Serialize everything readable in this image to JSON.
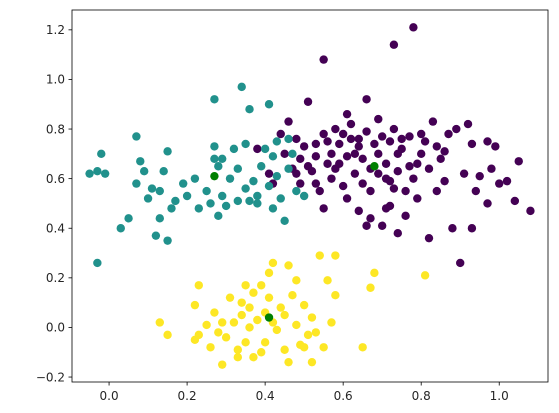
{
  "chart_data": {
    "type": "scatter",
    "title": "",
    "xlabel": "",
    "ylabel": "",
    "xlim": [
      -0.095,
      1.125
    ],
    "ylim": [
      -0.22,
      1.28
    ],
    "xticks": [
      0.0,
      0.2,
      0.4,
      0.6,
      0.8,
      1.0
    ],
    "xtick_labels": [
      "0.0",
      "0.2",
      "0.4",
      "0.6",
      "0.8",
      "1.0"
    ],
    "yticks": [
      -0.2,
      0.0,
      0.2,
      0.4,
      0.6,
      0.8,
      1.0,
      1.2
    ],
    "ytick_labels": [
      "−0.2",
      "0.0",
      "0.2",
      "0.4",
      "0.6",
      "0.8",
      "1.0",
      "1.2"
    ],
    "grid": false,
    "legend": "none",
    "series": [
      {
        "color": "#440154",
        "points": [
          [
            0.38,
            0.72
          ],
          [
            0.41,
            0.62
          ],
          [
            0.42,
            0.58
          ],
          [
            0.44,
            0.78
          ],
          [
            0.46,
            0.83
          ],
          [
            0.47,
            0.64
          ],
          [
            0.48,
            0.62
          ],
          [
            0.49,
            0.58
          ],
          [
            0.49,
            0.68
          ],
          [
            0.5,
            0.73
          ],
          [
            0.51,
            0.65
          ],
          [
            0.51,
            0.91
          ],
          [
            0.52,
            0.63
          ],
          [
            0.53,
            0.74
          ],
          [
            0.53,
            0.58
          ],
          [
            0.54,
            0.55
          ],
          [
            0.55,
            0.78
          ],
          [
            0.55,
            0.48
          ],
          [
            0.55,
            1.08
          ],
          [
            0.56,
            0.66
          ],
          [
            0.57,
            0.6
          ],
          [
            0.57,
            0.7
          ],
          [
            0.58,
            0.64
          ],
          [
            0.58,
            0.8
          ],
          [
            0.59,
            0.74
          ],
          [
            0.6,
            0.78
          ],
          [
            0.6,
            0.57
          ],
          [
            0.61,
            0.69
          ],
          [
            0.61,
            0.52
          ],
          [
            0.62,
            0.76
          ],
          [
            0.62,
            0.82
          ],
          [
            0.63,
            0.62
          ],
          [
            0.63,
            0.7
          ],
          [
            0.64,
            0.73
          ],
          [
            0.64,
            0.47
          ],
          [
            0.65,
            0.58
          ],
          [
            0.65,
            0.68
          ],
          [
            0.66,
            0.79
          ],
          [
            0.66,
            0.92
          ],
          [
            0.67,
            0.44
          ],
          [
            0.67,
            0.55
          ],
          [
            0.68,
            0.74
          ],
          [
            0.69,
            0.62
          ],
          [
            0.69,
            0.7
          ],
          [
            0.7,
            0.41
          ],
          [
            0.7,
            0.77
          ],
          [
            0.71,
            0.6
          ],
          [
            0.71,
            0.66
          ],
          [
            0.72,
            0.75
          ],
          [
            0.72,
            0.49
          ],
          [
            0.73,
            0.8
          ],
          [
            0.73,
            0.56
          ],
          [
            0.74,
            0.63
          ],
          [
            0.74,
            0.38
          ],
          [
            0.75,
            0.76
          ],
          [
            0.75,
            0.72
          ],
          [
            0.76,
            0.45
          ],
          [
            0.76,
            0.55
          ],
          [
            0.77,
            0.65
          ],
          [
            0.77,
            0.77
          ],
          [
            0.78,
            0.6
          ],
          [
            0.78,
            1.21
          ],
          [
            0.79,
            0.52
          ],
          [
            0.8,
            0.7
          ],
          [
            0.8,
            0.78
          ],
          [
            0.81,
            0.75
          ],
          [
            0.82,
            0.64
          ],
          [
            0.82,
            0.36
          ],
          [
            0.83,
            0.83
          ],
          [
            0.84,
            0.55
          ],
          [
            0.85,
            0.68
          ],
          [
            0.86,
            0.59
          ],
          [
            0.87,
            0.78
          ],
          [
            0.88,
            0.4
          ],
          [
            0.89,
            0.8
          ],
          [
            0.9,
            0.26
          ],
          [
            0.91,
            0.62
          ],
          [
            0.92,
            0.82
          ],
          [
            0.93,
            0.74
          ],
          [
            0.94,
            0.55
          ],
          [
            0.95,
            0.61
          ],
          [
            0.97,
            0.5
          ],
          [
            0.98,
            0.64
          ],
          [
            0.99,
            0.73
          ],
          [
            1.0,
            0.58
          ],
          [
            1.02,
            0.59
          ],
          [
            1.04,
            0.51
          ],
          [
            1.05,
            0.67
          ],
          [
            1.08,
            0.47
          ],
          [
            0.73,
            1.14
          ],
          [
            0.66,
            0.41
          ],
          [
            0.71,
            0.48
          ],
          [
            0.53,
            0.69
          ],
          [
            0.59,
            0.66
          ],
          [
            0.64,
            0.76
          ],
          [
            0.69,
            0.84
          ],
          [
            0.79,
            0.66
          ],
          [
            0.84,
            0.73
          ],
          [
            0.97,
            0.75
          ],
          [
            0.61,
            0.86
          ],
          [
            0.74,
            0.7
          ],
          [
            0.56,
            0.75
          ],
          [
            0.67,
            0.64
          ],
          [
            0.72,
            0.59
          ],
          [
            0.48,
            0.76
          ],
          [
            0.45,
            0.7
          ],
          [
            0.86,
            0.71
          ],
          [
            0.93,
            0.4
          ]
        ]
      },
      {
        "color": "#21918c",
        "points": [
          [
            -0.05,
            0.62
          ],
          [
            -0.03,
            0.63
          ],
          [
            -0.02,
            0.7
          ],
          [
            -0.01,
            0.62
          ],
          [
            -0.03,
            0.26
          ],
          [
            0.03,
            0.4
          ],
          [
            0.05,
            0.44
          ],
          [
            0.07,
            0.77
          ],
          [
            0.07,
            0.58
          ],
          [
            0.08,
            0.67
          ],
          [
            0.09,
            0.63
          ],
          [
            0.1,
            0.52
          ],
          [
            0.11,
            0.56
          ],
          [
            0.12,
            0.37
          ],
          [
            0.13,
            0.44
          ],
          [
            0.13,
            0.55
          ],
          [
            0.14,
            0.63
          ],
          [
            0.15,
            0.35
          ],
          [
            0.15,
            0.71
          ],
          [
            0.16,
            0.48
          ],
          [
            0.17,
            0.51
          ],
          [
            0.19,
            0.58
          ],
          [
            0.2,
            0.53
          ],
          [
            0.22,
            0.6
          ],
          [
            0.23,
            0.48
          ],
          [
            0.25,
            0.55
          ],
          [
            0.26,
            0.5
          ],
          [
            0.27,
            0.92
          ],
          [
            0.27,
            0.73
          ],
          [
            0.28,
            0.45
          ],
          [
            0.28,
            0.65
          ],
          [
            0.29,
            0.53
          ],
          [
            0.29,
            0.68
          ],
          [
            0.3,
            0.49
          ],
          [
            0.31,
            0.6
          ],
          [
            0.32,
            0.72
          ],
          [
            0.33,
            0.51
          ],
          [
            0.33,
            0.64
          ],
          [
            0.34,
            0.97
          ],
          [
            0.35,
            0.74
          ],
          [
            0.35,
            0.56
          ],
          [
            0.36,
            0.51
          ],
          [
            0.36,
            0.88
          ],
          [
            0.37,
            0.59
          ],
          [
            0.38,
            0.53
          ],
          [
            0.39,
            0.65
          ],
          [
            0.4,
            0.72
          ],
          [
            0.41,
            0.9
          ],
          [
            0.41,
            0.57
          ],
          [
            0.42,
            0.48
          ],
          [
            0.42,
            0.69
          ],
          [
            0.43,
            0.61
          ],
          [
            0.43,
            0.75
          ],
          [
            0.44,
            0.52
          ],
          [
            0.45,
            0.43
          ],
          [
            0.46,
            0.76
          ],
          [
            0.46,
            0.64
          ],
          [
            0.47,
            0.7
          ],
          [
            0.48,
            0.55
          ],
          [
            0.5,
            0.53
          ],
          [
            0.27,
            0.68
          ],
          [
            0.38,
            0.5
          ]
        ]
      },
      {
        "color": "#fde725",
        "points": [
          [
            0.13,
            0.02
          ],
          [
            0.15,
            -0.03
          ],
          [
            0.22,
            0.09
          ],
          [
            0.22,
            -0.05
          ],
          [
            0.23,
            -0.03
          ],
          [
            0.23,
            0.17
          ],
          [
            0.25,
            0.01
          ],
          [
            0.26,
            -0.08
          ],
          [
            0.27,
            0.06
          ],
          [
            0.28,
            -0.02
          ],
          [
            0.29,
            0.02
          ],
          [
            0.29,
            -0.15
          ],
          [
            0.3,
            -0.04
          ],
          [
            0.31,
            0.12
          ],
          [
            0.32,
            0.02
          ],
          [
            0.33,
            -0.12
          ],
          [
            0.34,
            0.05
          ],
          [
            0.34,
            0.1
          ],
          [
            0.35,
            -0.06
          ],
          [
            0.35,
            0.17
          ],
          [
            0.36,
            0.08
          ],
          [
            0.36,
            0.0
          ],
          [
            0.37,
            -0.12
          ],
          [
            0.37,
            0.14
          ],
          [
            0.38,
            0.03
          ],
          [
            0.39,
            0.17
          ],
          [
            0.39,
            -0.1
          ],
          [
            0.4,
            0.06
          ],
          [
            0.4,
            -0.06
          ],
          [
            0.41,
            0.12
          ],
          [
            0.41,
            0.22
          ],
          [
            0.42,
            0.02
          ],
          [
            0.42,
            0.26
          ],
          [
            0.43,
            -0.01
          ],
          [
            0.44,
            0.08
          ],
          [
            0.45,
            -0.09
          ],
          [
            0.45,
            0.05
          ],
          [
            0.46,
            -0.14
          ],
          [
            0.46,
            0.25
          ],
          [
            0.47,
            0.13
          ],
          [
            0.48,
            0.01
          ],
          [
            0.48,
            0.19
          ],
          [
            0.49,
            -0.07
          ],
          [
            0.5,
            0.09
          ],
          [
            0.5,
            -0.08
          ],
          [
            0.51,
            -0.03
          ],
          [
            0.52,
            0.04
          ],
          [
            0.52,
            -0.14
          ],
          [
            0.53,
            -0.02
          ],
          [
            0.54,
            0.29
          ],
          [
            0.55,
            -0.08
          ],
          [
            0.56,
            0.19
          ],
          [
            0.57,
            0.02
          ],
          [
            0.58,
            0.29
          ],
          [
            0.58,
            0.13
          ],
          [
            0.65,
            -0.08
          ],
          [
            0.67,
            0.16
          ],
          [
            0.68,
            0.22
          ],
          [
            0.81,
            0.21
          ],
          [
            0.33,
            -0.09
          ]
        ]
      },
      {
        "color": "#008000",
        "points": [
          [
            0.27,
            0.61
          ],
          [
            0.41,
            0.04
          ],
          [
            0.68,
            0.65
          ]
        ]
      }
    ]
  }
}
